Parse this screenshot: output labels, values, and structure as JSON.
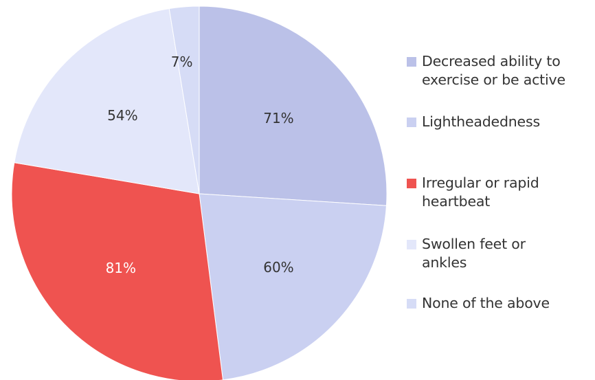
{
  "chart_data": {
    "type": "pie",
    "categories": [
      "Decreased ability to exercise or be active",
      "Lightheadedness",
      "Irregular or rapid heartbeat",
      "Swollen feet or ankles",
      "None of the above"
    ],
    "values": [
      71,
      60,
      81,
      54,
      7
    ],
    "labels": [
      "71%",
      "60%",
      "81%",
      "54%",
      "7%"
    ],
    "colors": [
      "#bbc1e8",
      "#cad0f1",
      "#ef5350",
      "#e3e7fa",
      "#d6dcf6"
    ],
    "label_colors": [
      "#333333",
      "#333333",
      "#ffffff",
      "#333333",
      "#333333"
    ],
    "start_angle_deg": 0,
    "direction": "clockwise",
    "legend_position": "right"
  }
}
